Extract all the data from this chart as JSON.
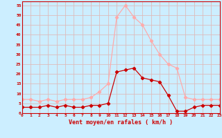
{
  "x": [
    0,
    1,
    2,
    3,
    4,
    5,
    6,
    7,
    8,
    9,
    10,
    11,
    12,
    13,
    14,
    15,
    16,
    17,
    18,
    19,
    20,
    21,
    22,
    23
  ],
  "wind_avg": [
    3,
    3,
    3,
    4,
    3,
    4,
    3,
    3,
    4,
    4,
    5,
    21,
    22,
    23,
    18,
    17,
    16,
    9,
    1,
    1,
    3,
    4,
    4,
    4
  ],
  "wind_gust": [
    7,
    7,
    6,
    7,
    6,
    7,
    7,
    7,
    8,
    11,
    15,
    49,
    55,
    49,
    45,
    37,
    30,
    25,
    23,
    8,
    7,
    7,
    7,
    7
  ],
  "avg_color": "#cc0000",
  "gust_color": "#ffaaaa",
  "bg_color": "#cceeff",
  "grid_color": "#ddbbbb",
  "xlabel": "Vent moyen/en rafales ( km/h )",
  "ylabel_ticks": [
    0,
    5,
    10,
    15,
    20,
    25,
    30,
    35,
    40,
    45,
    50,
    55
  ],
  "ylim": [
    0,
    57
  ],
  "xlim": [
    0,
    23
  ]
}
